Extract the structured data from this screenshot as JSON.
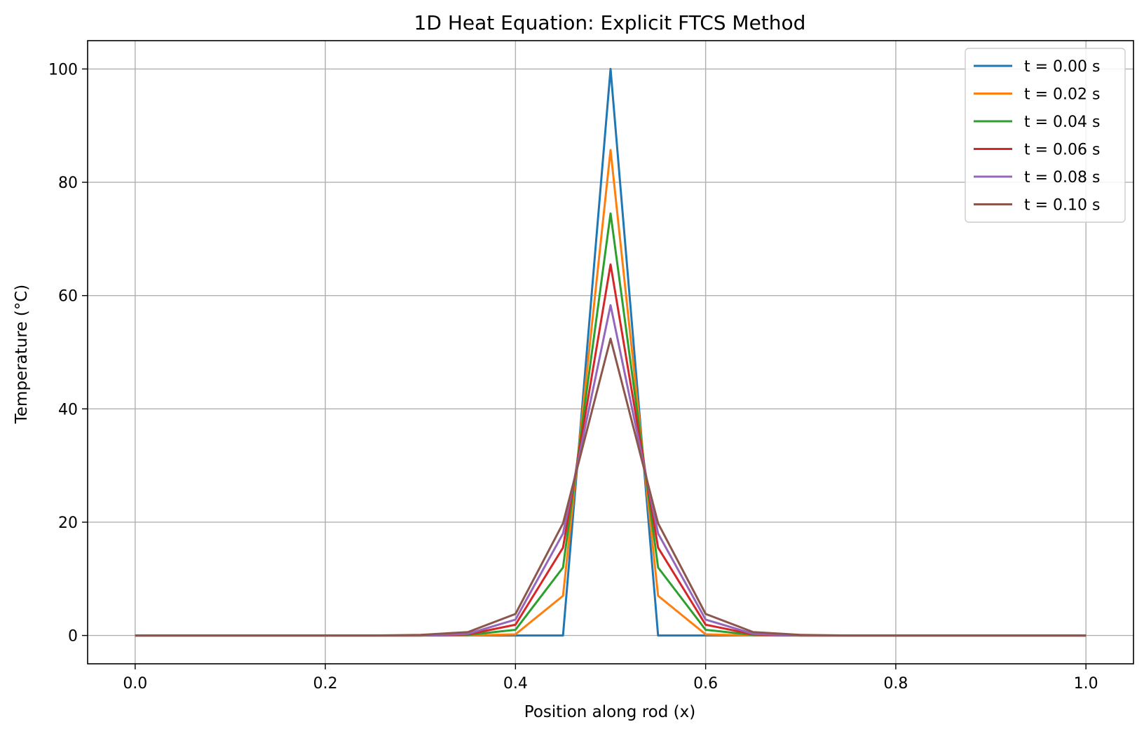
{
  "chart_data": {
    "type": "line",
    "title": "1D Heat Equation: Explicit FTCS Method",
    "xlabel": "Position along rod (x)",
    "ylabel": "Temperature (°C)",
    "xlim": [
      -0.05,
      1.05
    ],
    "ylim": [
      -5,
      105
    ],
    "xticks": [
      0.0,
      0.2,
      0.4,
      0.6,
      0.8,
      1.0
    ],
    "xtick_labels": [
      "0.0",
      "0.2",
      "0.4",
      "0.6",
      "0.8",
      "1.0"
    ],
    "yticks": [
      0,
      20,
      40,
      60,
      80,
      100
    ],
    "ytick_labels": [
      "0",
      "20",
      "40",
      "60",
      "80",
      "100"
    ],
    "grid": true,
    "legend_position": "top-right",
    "x": [
      0.0,
      0.05,
      0.1,
      0.15,
      0.2,
      0.25,
      0.3,
      0.35,
      0.4,
      0.45,
      0.5,
      0.55,
      0.6,
      0.65,
      0.7,
      0.75,
      0.8,
      0.85,
      0.9,
      0.95,
      1.0
    ],
    "series": [
      {
        "name": "t = 0.00 s",
        "color": "#1f77b4",
        "values": [
          0,
          0,
          0,
          0,
          0,
          0,
          0,
          0,
          0,
          0,
          100,
          0,
          0,
          0,
          0,
          0,
          0,
          0,
          0,
          0,
          0
        ]
      },
      {
        "name": "t = 0.02 s",
        "color": "#ff7f0e",
        "values": [
          0,
          0,
          0,
          0,
          0,
          0,
          0,
          0,
          0.2,
          7,
          85.7,
          7,
          0.2,
          0,
          0,
          0,
          0,
          0,
          0,
          0,
          0
        ]
      },
      {
        "name": "t = 0.04 s",
        "color": "#2ca02c",
        "values": [
          0,
          0,
          0,
          0,
          0,
          0,
          0,
          0.1,
          1.0,
          12,
          74.5,
          12,
          1.0,
          0.1,
          0,
          0,
          0,
          0,
          0,
          0,
          0
        ]
      },
      {
        "name": "t = 0.06 s",
        "color": "#d62728",
        "values": [
          0,
          0,
          0,
          0,
          0,
          0,
          0,
          0.2,
          1.9,
          15.5,
          65.5,
          15.5,
          1.9,
          0.2,
          0,
          0,
          0,
          0,
          0,
          0,
          0
        ]
      },
      {
        "name": "t = 0.08 s",
        "color": "#9467bd",
        "values": [
          0,
          0,
          0,
          0,
          0,
          0,
          0,
          0.3,
          2.8,
          18,
          58.3,
          18,
          2.8,
          0.3,
          0,
          0,
          0,
          0,
          0,
          0,
          0
        ]
      },
      {
        "name": "t = 0.10 s",
        "color": "#8c564b",
        "values": [
          0,
          0,
          0,
          0,
          0,
          0,
          0.1,
          0.6,
          3.8,
          19.8,
          52.4,
          19.8,
          3.8,
          0.6,
          0.1,
          0,
          0,
          0,
          0,
          0,
          0
        ]
      }
    ]
  }
}
